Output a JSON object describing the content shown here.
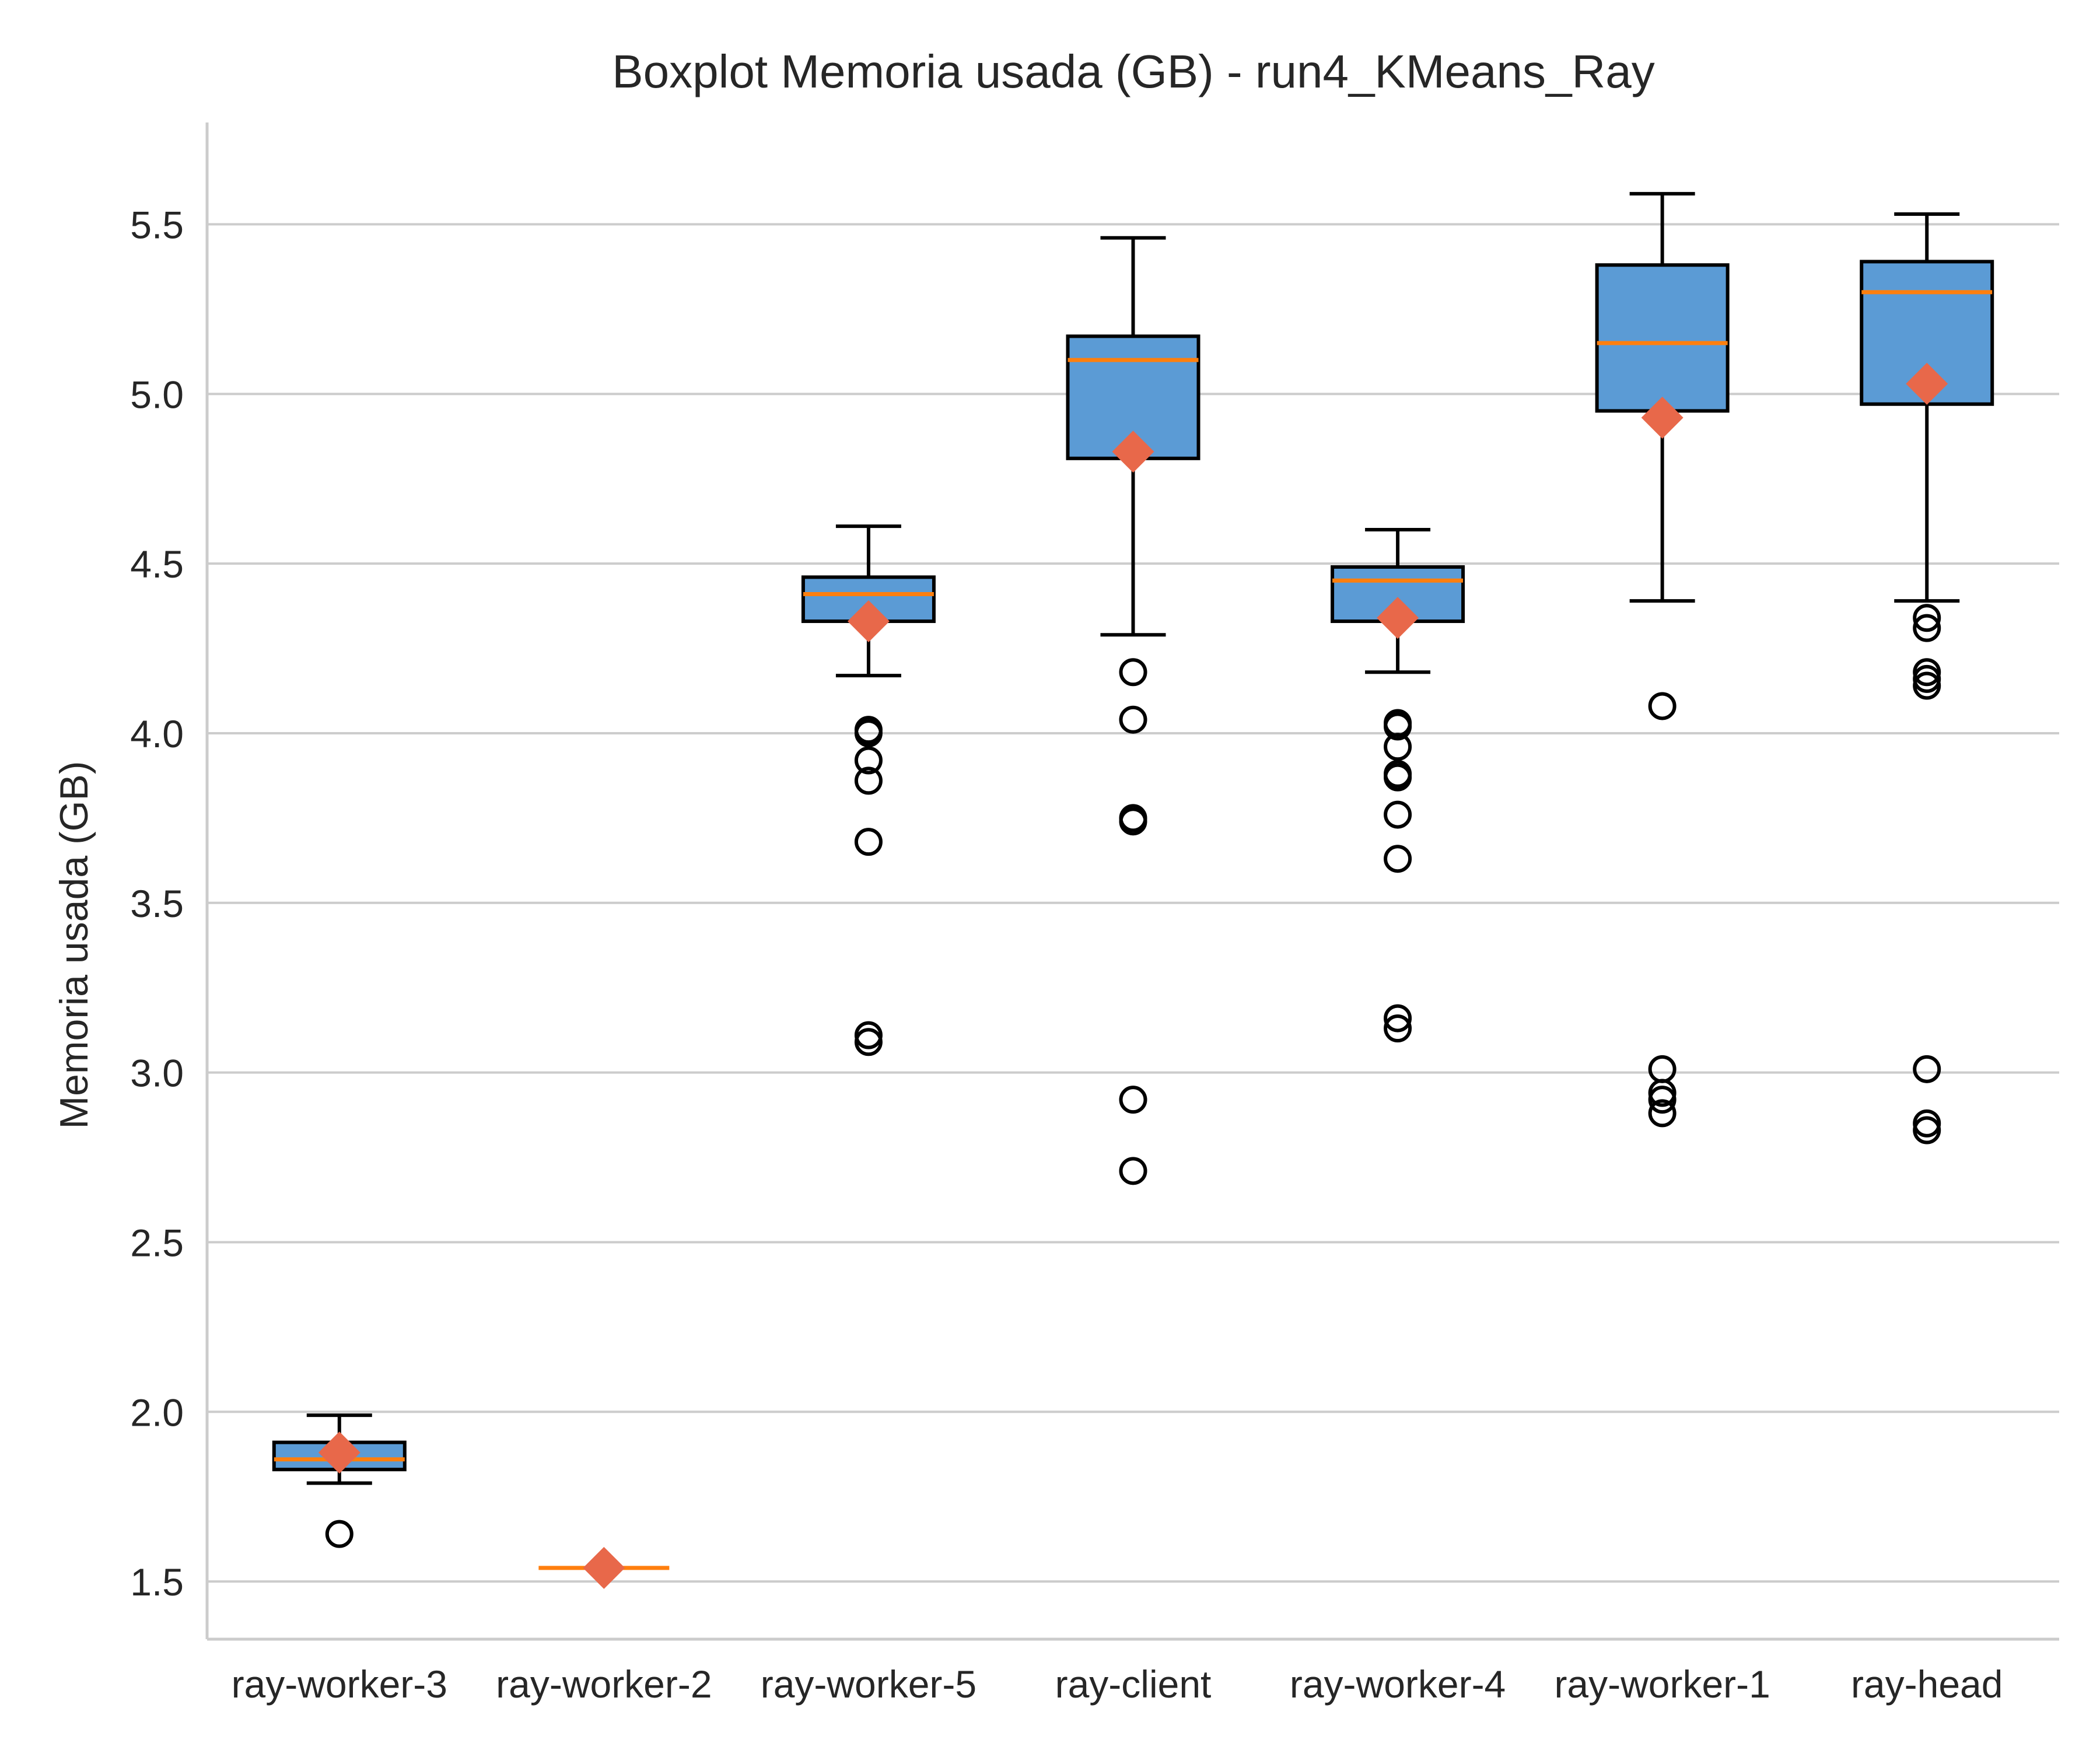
{
  "chart_data": {
    "type": "boxplot",
    "title": "Boxplot Memoria usada (GB) - run4_KMeans_Ray",
    "xlabel": "",
    "ylabel": "Memoria usada (GB)",
    "ylim": [
      1.33,
      5.8
    ],
    "yticks": [
      1.5,
      2.0,
      2.5,
      3.0,
      3.5,
      4.0,
      4.5,
      5.0,
      5.5
    ],
    "ytick_labels": [
      "1.5",
      "2.0",
      "2.5",
      "3.0",
      "3.5",
      "4.0",
      "4.5",
      "5.0",
      "5.5"
    ],
    "grid": "horizontal",
    "colors": {
      "box_fill": "#5b9bd5",
      "median": "#ff7f0e",
      "mean_marker": "#e8684a",
      "outline": "#000000",
      "grid": "#cccccc",
      "axis": "#cccccc"
    },
    "categories": [
      "ray-worker-3",
      "ray-worker-2",
      "ray-worker-5",
      "ray-client",
      "ray-worker-4",
      "ray-worker-1",
      "ray-head"
    ],
    "boxes": [
      {
        "category": "ray-worker-3",
        "whisker_low": 1.79,
        "q1": 1.83,
        "median": 1.86,
        "q3": 1.91,
        "whisker_high": 1.99,
        "mean": 1.88,
        "outliers": [
          1.64
        ]
      },
      {
        "category": "ray-worker-2",
        "whisker_low": 1.54,
        "q1": 1.54,
        "median": 1.54,
        "q3": 1.54,
        "whisker_high": 1.54,
        "mean": 1.54,
        "outliers": []
      },
      {
        "category": "ray-worker-5",
        "whisker_low": 4.17,
        "q1": 4.33,
        "median": 4.41,
        "q3": 4.46,
        "whisker_high": 4.61,
        "mean": 4.33,
        "outliers": [
          4.01,
          4.0,
          3.92,
          3.86,
          3.68,
          3.11,
          3.09
        ]
      },
      {
        "category": "ray-client",
        "whisker_low": 4.29,
        "q1": 4.81,
        "median": 5.1,
        "q3": 5.17,
        "whisker_high": 5.46,
        "mean": 4.83,
        "outliers": [
          4.18,
          4.04,
          3.75,
          3.74,
          2.92,
          2.71
        ]
      },
      {
        "category": "ray-worker-4",
        "whisker_low": 4.18,
        "q1": 4.33,
        "median": 4.45,
        "q3": 4.49,
        "whisker_high": 4.6,
        "mean": 4.34,
        "outliers": [
          4.03,
          4.02,
          3.96,
          3.88,
          3.87,
          3.76,
          3.63,
          3.16,
          3.13
        ]
      },
      {
        "category": "ray-worker-1",
        "whisker_low": 4.39,
        "q1": 4.95,
        "median": 5.15,
        "q3": 5.38,
        "whisker_high": 5.59,
        "mean": 4.93,
        "outliers": [
          4.08,
          3.01,
          2.94,
          2.92,
          2.88
        ]
      },
      {
        "category": "ray-head",
        "whisker_low": 4.39,
        "q1": 4.97,
        "median": 5.3,
        "q3": 5.39,
        "whisker_high": 5.53,
        "mean": 5.03,
        "outliers": [
          4.34,
          4.31,
          4.18,
          4.16,
          4.14,
          3.01,
          2.85,
          2.83
        ]
      }
    ]
  }
}
